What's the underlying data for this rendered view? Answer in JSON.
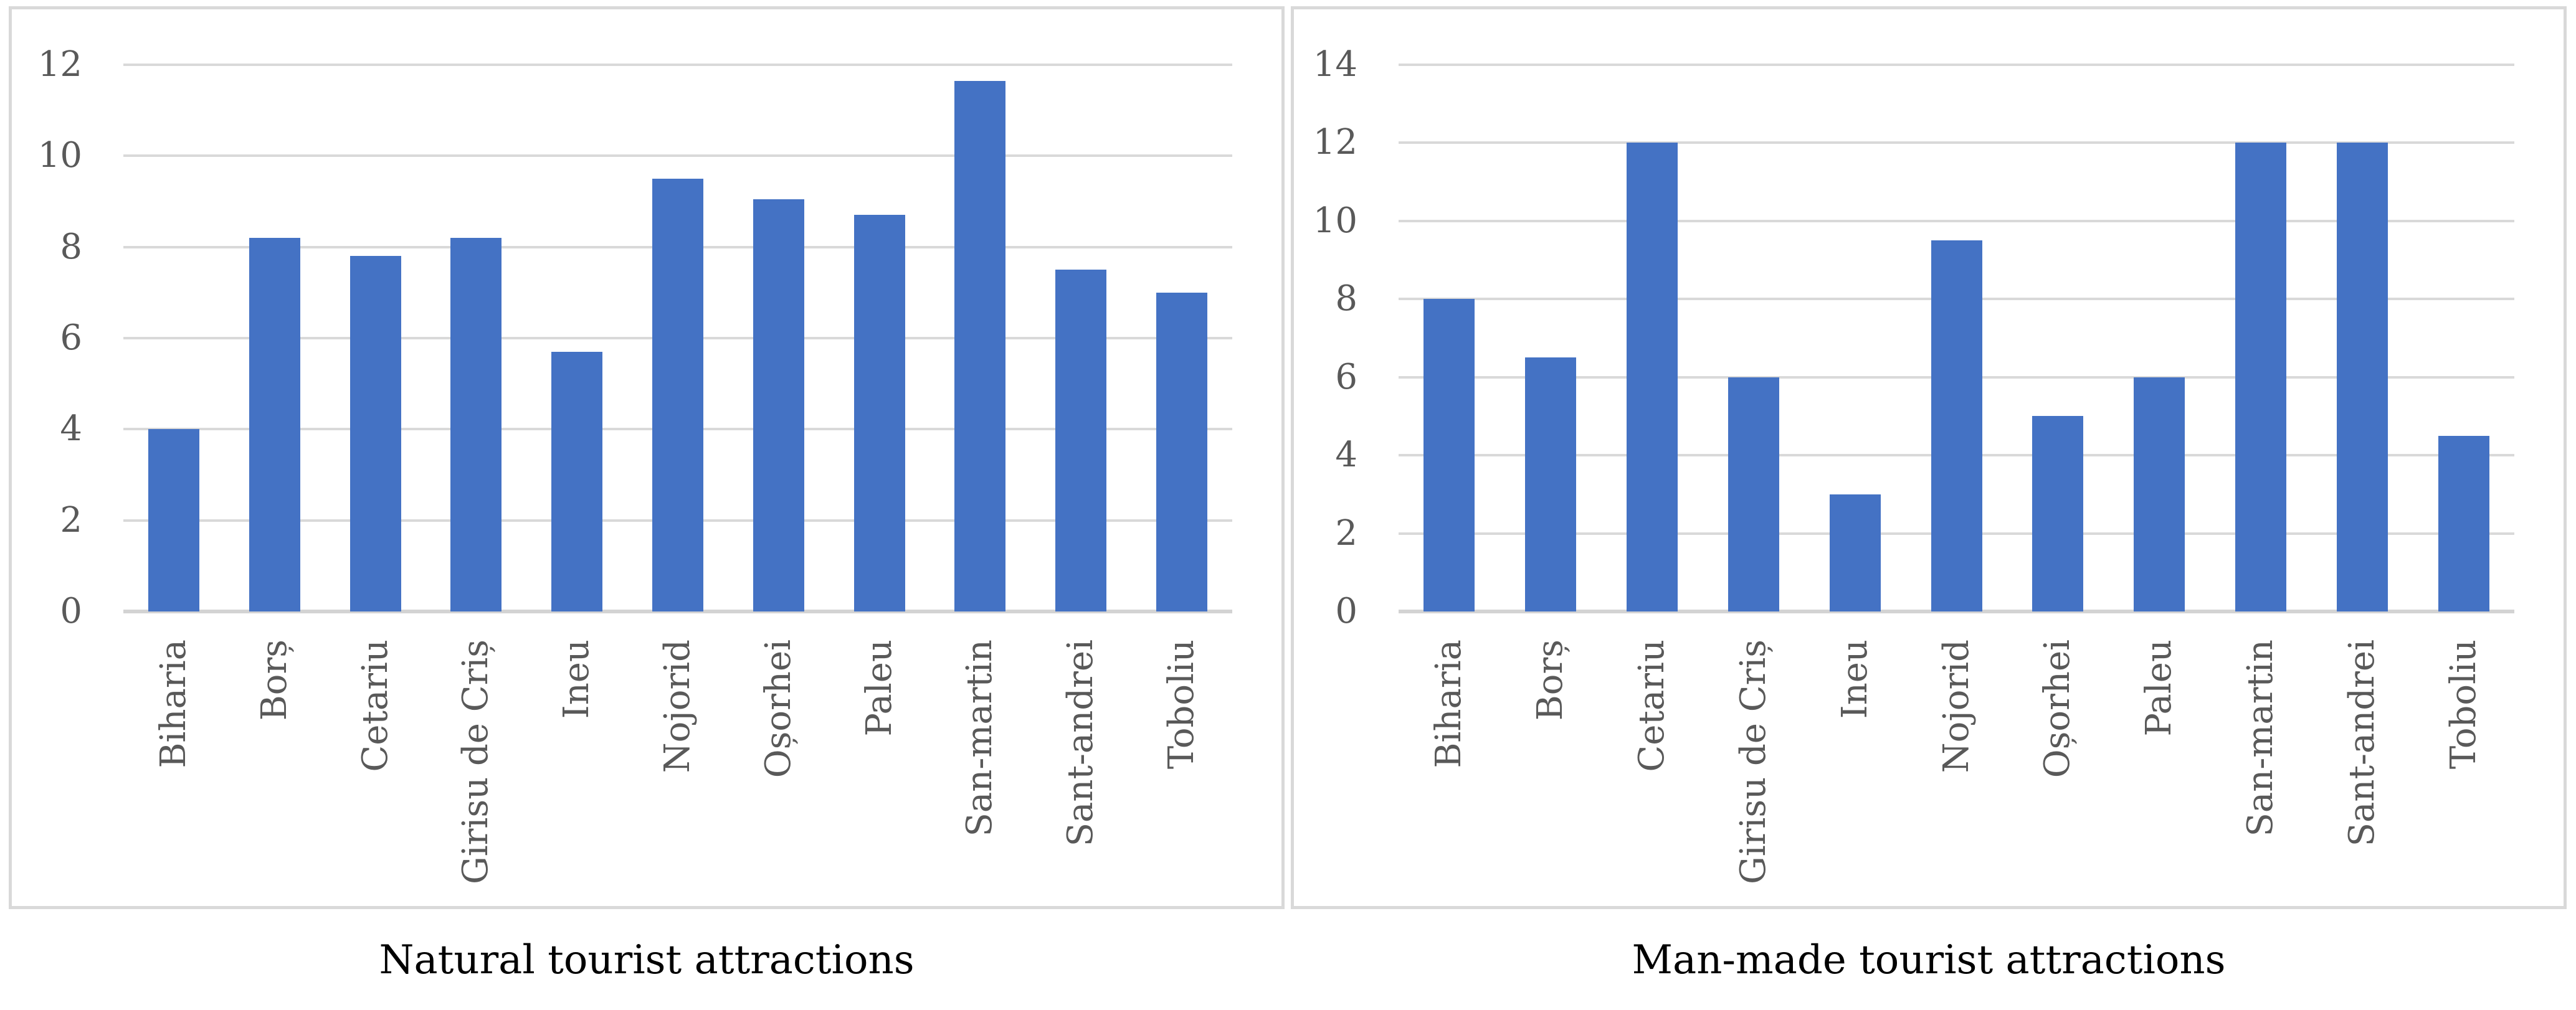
{
  "figure": {
    "bar_color": "#4472C4",
    "grid_color": "#D9D9D9",
    "axis_line_color": "#D3D3D3",
    "tick_label_color": "#595959",
    "caption_color": "#000000"
  },
  "chart_data": [
    {
      "type": "bar",
      "title": "Natural tourist attractions",
      "categories": [
        "Biharia",
        "Borș",
        "Cetariu",
        "Girisu de Criș",
        "Ineu",
        "Nojorid",
        "Oșorhei",
        "Paleu",
        "San-martin",
        "Sant-andrei",
        "Toboliu"
      ],
      "values": [
        4,
        8.2,
        7.8,
        8.2,
        5.7,
        9.5,
        9.05,
        8.7,
        11.65,
        7.5,
        7
      ],
      "xlabel": "",
      "ylabel": "",
      "ylim": [
        0,
        12
      ],
      "yticks": [
        0,
        2,
        4,
        6,
        8,
        10,
        12
      ],
      "grid": true,
      "legend_position": "none"
    },
    {
      "type": "bar",
      "title": "Man-made tourist attractions",
      "categories": [
        "Biharia",
        "Borș",
        "Cetariu",
        "Girisu de Criș",
        "Ineu",
        "Nojorid",
        "Oșorhei",
        "Paleu",
        "San-martin",
        "Sant-andrei",
        "Toboliu"
      ],
      "values": [
        8,
        6.5,
        12,
        6,
        3,
        9.5,
        5,
        6,
        12,
        12,
        4.5
      ],
      "xlabel": "",
      "ylabel": "",
      "ylim": [
        0,
        14
      ],
      "yticks": [
        0,
        2,
        4,
        6,
        8,
        10,
        12,
        14
      ],
      "grid": true,
      "legend_position": "none"
    }
  ]
}
